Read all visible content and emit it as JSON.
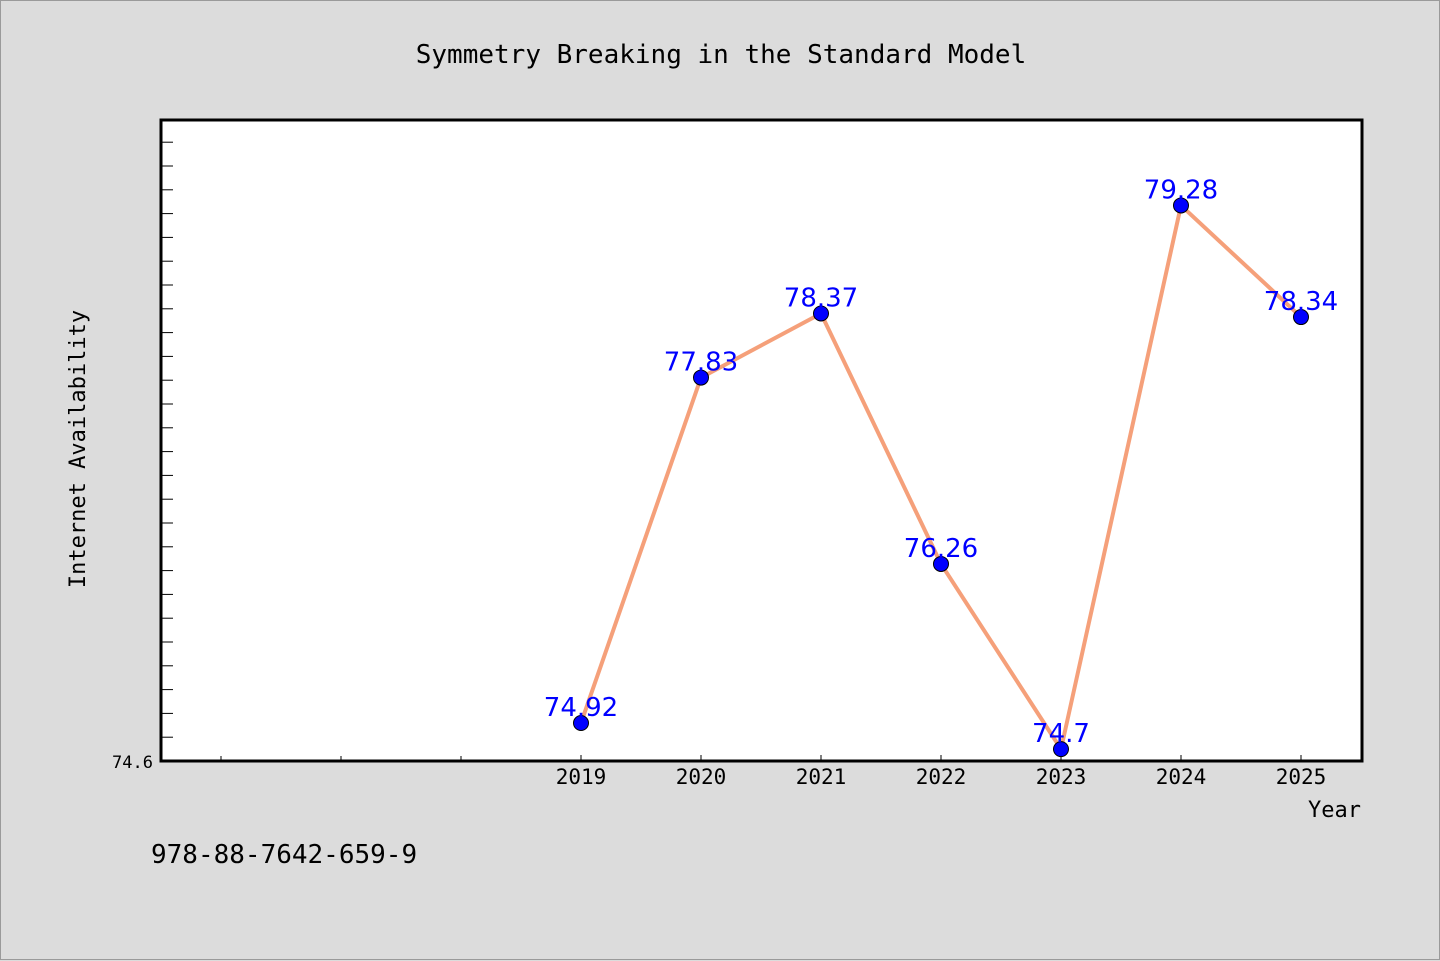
{
  "chart_data": {
    "type": "line",
    "title": "Symmetry Breaking in the Standard Model",
    "xlabel": "Year",
    "ylabel": "Internet Availability",
    "categories": [
      "2019",
      "2020",
      "2021",
      "2022",
      "2023",
      "2024",
      "2025"
    ],
    "values": [
      74.92,
      77.83,
      78.37,
      76.26,
      74.7,
      79.28,
      78.34
    ],
    "data_labels": [
      "74.92",
      "77.83",
      "78.37",
      "76.26",
      "74.7",
      "79.28",
      "78.34"
    ],
    "ylim": [
      74.6,
      80.0
    ],
    "y_tick_label": "74.6",
    "grid": false,
    "colors": {
      "line": "#f5a07a",
      "marker": "#0000ff",
      "label": "#0000ff",
      "plot_bg": "#ffffff",
      "page_bg": "#dcdcdc"
    }
  },
  "footer": {
    "isbn": "978-88-7642-659-9"
  }
}
